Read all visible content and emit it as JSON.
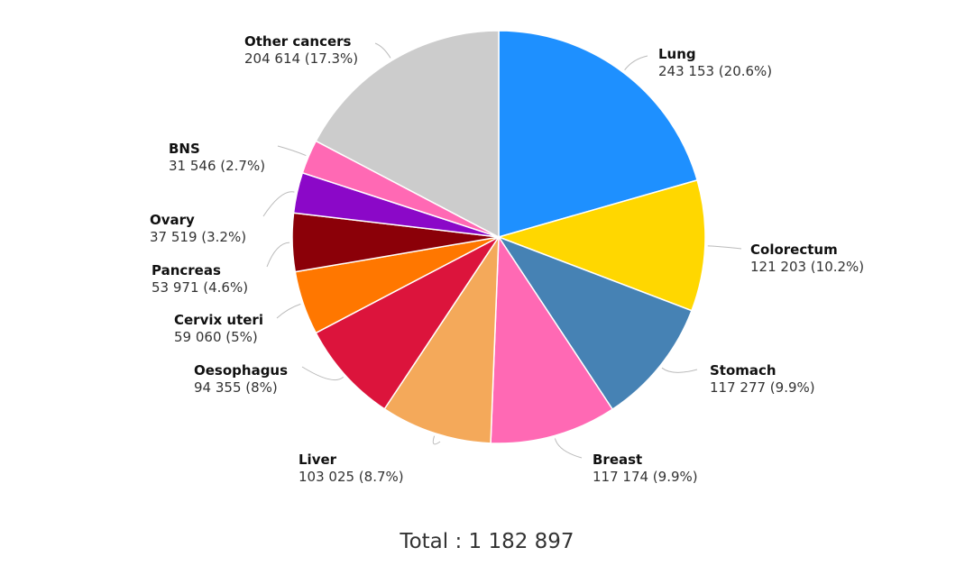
{
  "chart_data": {
    "type": "pie",
    "title": "",
    "total_label": "Total : 1 182 897",
    "slices": [
      {
        "name": "Lung",
        "value": 243153,
        "value_label": "243 153 (20.6%)",
        "color": "#1e90ff"
      },
      {
        "name": "Colorectum",
        "value": 121203,
        "value_label": "121 203 (10.2%)",
        "color": "#ffd700"
      },
      {
        "name": "Stomach",
        "value": 117277,
        "value_label": "117 277 (9.9%)",
        "color": "#4682b4"
      },
      {
        "name": "Breast",
        "value": 117174,
        "value_label": "117 174 (9.9%)",
        "color": "#ff69b4"
      },
      {
        "name": "Liver",
        "value": 103025,
        "value_label": "103 025 (8.7%)",
        "color": "#f4a95a"
      },
      {
        "name": "Oesophagus",
        "value": 94355,
        "value_label": "94 355 (8%)",
        "color": "#dc143c"
      },
      {
        "name": "Cervix uteri",
        "value": 59060,
        "value_label": "59 060 (5%)",
        "color": "#ff7700"
      },
      {
        "name": "Pancreas",
        "value": 53971,
        "value_label": "53 971 (4.6%)",
        "color": "#8b0008"
      },
      {
        "name": "Ovary",
        "value": 37519,
        "value_label": "37 519 (3.2%)",
        "color": "#8b08c8"
      },
      {
        "name": "BNS",
        "value": 31546,
        "value_label": "31 546 (2.7%)",
        "color": "#ff69b4"
      },
      {
        "name": "Other cancers",
        "value": 204614,
        "value_label": "204 614 (17.3%)",
        "color": "#cccccc"
      }
    ]
  }
}
